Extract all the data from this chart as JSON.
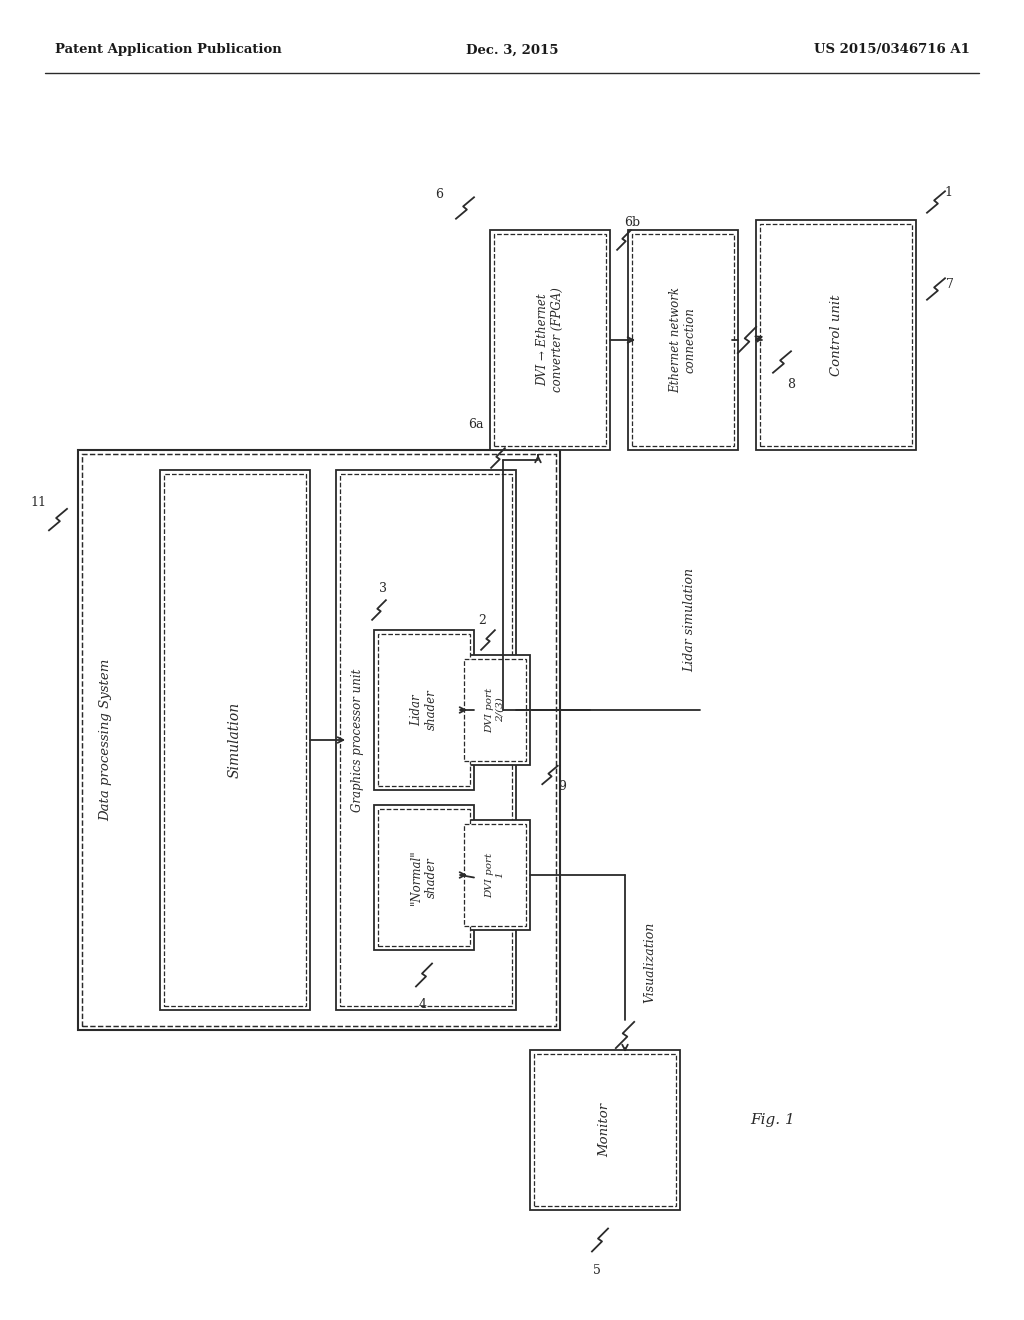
{
  "title_left": "Patent Application Publication",
  "title_center": "Dec. 3, 2015",
  "title_right": "US 2015/0346716 A1",
  "fig_label": "Fig. 1",
  "bg": "#ffffff",
  "lc": "#2a2a2a",
  "tc": "#2a2a2a"
}
